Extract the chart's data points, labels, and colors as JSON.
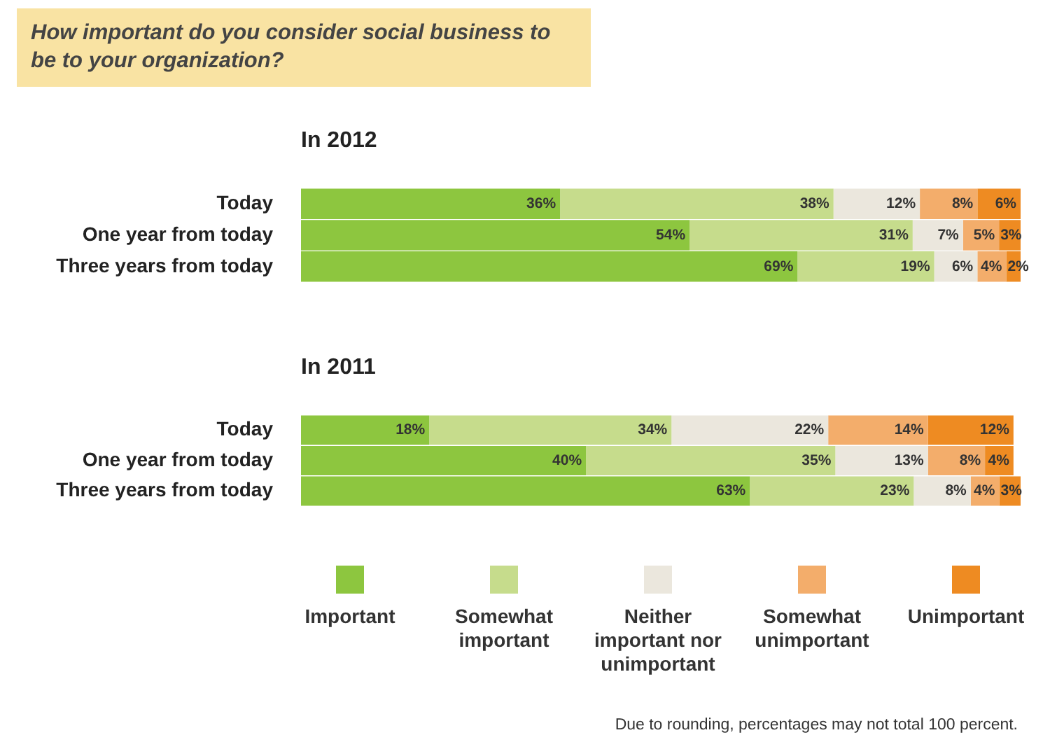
{
  "chart_data": [
    {
      "type": "bar",
      "orientation": "horizontal",
      "stacked": true,
      "title": "How important do you consider social business to be to your organization?",
      "subtitle": "In 2012",
      "categories": [
        "Today",
        "One year from today",
        "Three years from today"
      ],
      "legend": false,
      "series": [
        {
          "color": "#8dc63f",
          "values": [
            36,
            54,
            69
          ],
          "value_labels": [
            "36%",
            "54%",
            "69%"
          ]
        },
        {
          "color": "#c6dc8c",
          "values": [
            38,
            31,
            19
          ],
          "value_labels": [
            "38%",
            "31%",
            "19%"
          ]
        },
        {
          "color": "#ebe7dd",
          "values": [
            12,
            7,
            6
          ],
          "value_labels": [
            "12%",
            "7%",
            "6%"
          ]
        },
        {
          "color": "#f3ad6b",
          "values": [
            8,
            5,
            4
          ],
          "value_labels": [
            "8%",
            "5%",
            "4%"
          ]
        },
        {
          "color": "#ee8b22",
          "values": [
            6,
            3,
            2
          ],
          "value_labels": [
            "6%",
            "3%",
            "2%"
          ]
        }
      ]
    },
    {
      "type": "bar",
      "orientation": "horizontal",
      "stacked": true,
      "title": "In 2011",
      "categories": [
        "Today",
        "One year from today",
        "Three years from today"
      ],
      "legend": "bottom",
      "annotations": [
        "Due to rounding, percentages may not total 100 percent."
      ],
      "series": [
        {
          "name": "Important",
          "color": "#8dc63f",
          "values": [
            18,
            40,
            63
          ],
          "value_labels": [
            "18%",
            "40%",
            "63%"
          ]
        },
        {
          "name": "Somewhat important",
          "color": "#c6dc8c",
          "values": [
            34,
            35,
            23
          ],
          "value_labels": [
            "34%",
            "35%",
            "23%"
          ]
        },
        {
          "name": "Neither important nor unimportant",
          "color": "#ebe7dd",
          "values": [
            22,
            13,
            8
          ],
          "value_labels": [
            "22%",
            "13%",
            "8%"
          ]
        },
        {
          "name": "Somewhat unimportant",
          "color": "#f3ad6b",
          "values": [
            14,
            8,
            4
          ],
          "value_labels": [
            "14%",
            "8%",
            "4%"
          ]
        },
        {
          "name": "Unimportant",
          "color": "#ee8b22",
          "values": [
            12,
            4,
            3
          ],
          "value_labels": [
            "12%",
            "4%",
            "3%"
          ]
        }
      ]
    }
  ]
}
